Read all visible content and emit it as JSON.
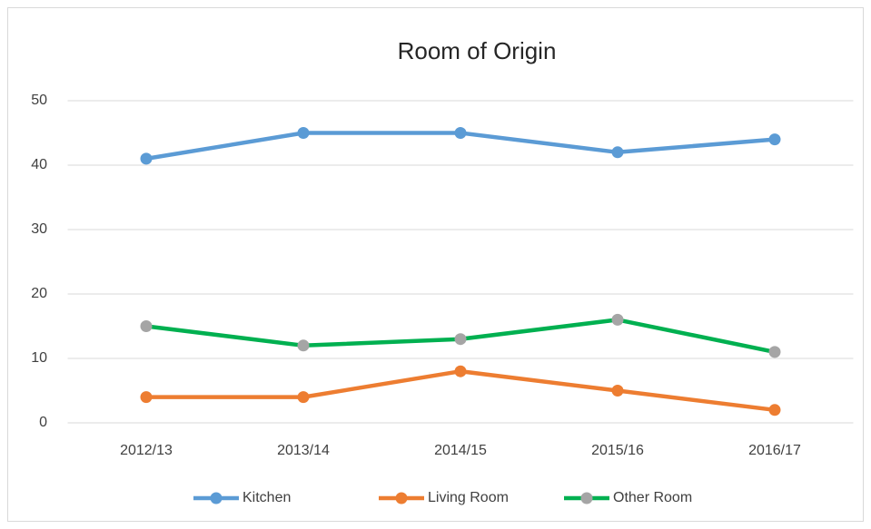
{
  "chart_data": {
    "type": "line",
    "title": "Room of Origin",
    "categories": [
      "2012/13",
      "2013/14",
      "2014/15",
      "2015/16",
      "2016/17"
    ],
    "series": [
      {
        "name": "Kitchen",
        "color": "#5b9bd5",
        "marker_color": "#5b9bd5",
        "values": [
          41,
          45,
          45,
          42,
          44
        ]
      },
      {
        "name": "Living Room",
        "color": "#ed7d31",
        "marker_color": "#ed7d31",
        "values": [
          4,
          4,
          8,
          5,
          2
        ]
      },
      {
        "name": "Other Room",
        "color": "#00b050",
        "marker_color": "#a5a5a5",
        "values": [
          15,
          12,
          13,
          16,
          11
        ]
      }
    ],
    "ylim": [
      0,
      50
    ],
    "yticks": [
      0,
      10,
      20,
      30,
      40,
      50
    ],
    "grid": true,
    "legend": "bottom"
  }
}
